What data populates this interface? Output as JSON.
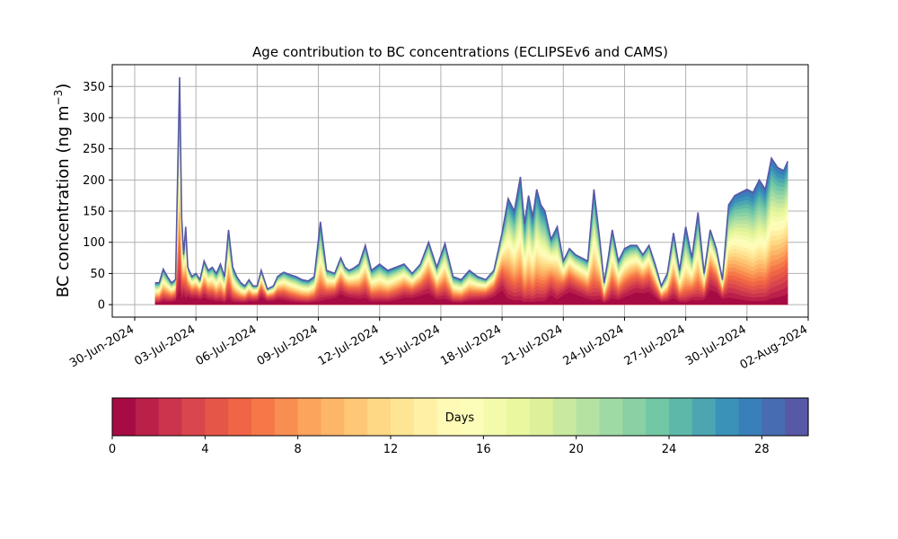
{
  "chart_data": {
    "type": "area",
    "title": "Age contribution to BC concentrations (ECLIPSEv6 and CAMS)",
    "ylabel": "BC concentration (ng m",
    "ylabel_sup": "−3",
    "ylabel_close": ")",
    "xlabel": "",
    "ylim": [
      -20,
      385
    ],
    "yticks": [
      0,
      50,
      100,
      150,
      200,
      250,
      300,
      350
    ],
    "xticks": [
      "30-Jun-2024",
      "03-Jul-2024",
      "06-Jul-2024",
      "09-Jul-2024",
      "12-Jul-2024",
      "15-Jul-2024",
      "18-Jul-2024",
      "21-Jul-2024",
      "24-Jul-2024",
      "27-Jul-2024",
      "30-Jul-2024",
      "02-Aug-2024"
    ],
    "xlim_days_from_30jun": [
      -1.1,
      33.0
    ],
    "xtick_days_from_30jun": [
      0,
      3,
      6,
      9,
      12,
      15,
      18,
      21,
      24,
      27,
      30,
      33
    ],
    "grid": true,
    "series_description": "Stacked contributions by age in days (0 to 30); top value is total",
    "total": {
      "days": [
        1.0,
        1.2,
        1.4,
        1.6,
        1.8,
        2.0,
        2.2,
        2.3,
        2.4,
        2.5,
        2.6,
        2.8,
        3.0,
        3.2,
        3.4,
        3.6,
        3.8,
        4.0,
        4.2,
        4.4,
        4.6,
        4.8,
        5.0,
        5.2,
        5.4,
        5.6,
        5.8,
        6.0,
        6.2,
        6.5,
        6.8,
        7.0,
        7.3,
        7.6,
        7.9,
        8.2,
        8.5,
        8.8,
        9.1,
        9.4,
        9.8,
        10.1,
        10.3,
        10.5,
        10.7,
        11.0,
        11.3,
        11.6,
        12.0,
        12.4,
        12.8,
        13.2,
        13.6,
        14.0,
        14.4,
        14.8,
        15.2,
        15.6,
        16.0,
        16.4,
        16.8,
        17.2,
        17.6,
        18.0,
        18.3,
        18.6,
        18.9,
        19.1,
        19.3,
        19.5,
        19.7,
        19.9,
        20.1,
        20.4,
        20.7,
        21.0,
        21.3,
        21.6,
        21.9,
        22.2,
        22.5,
        22.8,
        23.0,
        23.2,
        23.4,
        23.7,
        24.0,
        24.3,
        24.6,
        24.9,
        25.2,
        25.5,
        25.8,
        26.1,
        26.4,
        26.7,
        27.0,
        27.3,
        27.6,
        27.9,
        28.2,
        28.5,
        28.8,
        29.1,
        29.4,
        29.7,
        30.0,
        30.3,
        30.6,
        30.9,
        31.2,
        31.5,
        31.8,
        32.0
      ],
      "values": [
        35,
        35,
        57,
        45,
        35,
        40,
        365,
        140,
        80,
        125,
        60,
        45,
        50,
        40,
        70,
        55,
        60,
        50,
        65,
        45,
        120,
        60,
        45,
        35,
        30,
        40,
        30,
        30,
        55,
        25,
        30,
        45,
        52,
        48,
        45,
        40,
        38,
        45,
        133,
        55,
        50,
        75,
        60,
        55,
        58,
        65,
        95,
        55,
        65,
        55,
        60,
        65,
        50,
        65,
        100,
        60,
        98,
        45,
        40,
        55,
        45,
        40,
        55,
        115,
        170,
        150,
        205,
        130,
        175,
        140,
        185,
        160,
        150,
        105,
        125,
        70,
        90,
        80,
        75,
        70,
        185,
        100,
        35,
        75,
        120,
        70,
        90,
        95,
        95,
        80,
        95,
        65,
        30,
        50,
        115,
        55,
        125,
        75,
        148,
        50,
        120,
        90,
        40,
        160,
        175,
        180,
        185,
        180,
        200,
        185,
        235,
        220,
        215,
        230
      ]
    },
    "colorbar": {
      "label": "Days",
      "range": [
        0,
        30
      ],
      "ticks": [
        0,
        4,
        8,
        12,
        16,
        20,
        24,
        28
      ],
      "colormap": "Spectral",
      "n_bins": 30
    }
  }
}
